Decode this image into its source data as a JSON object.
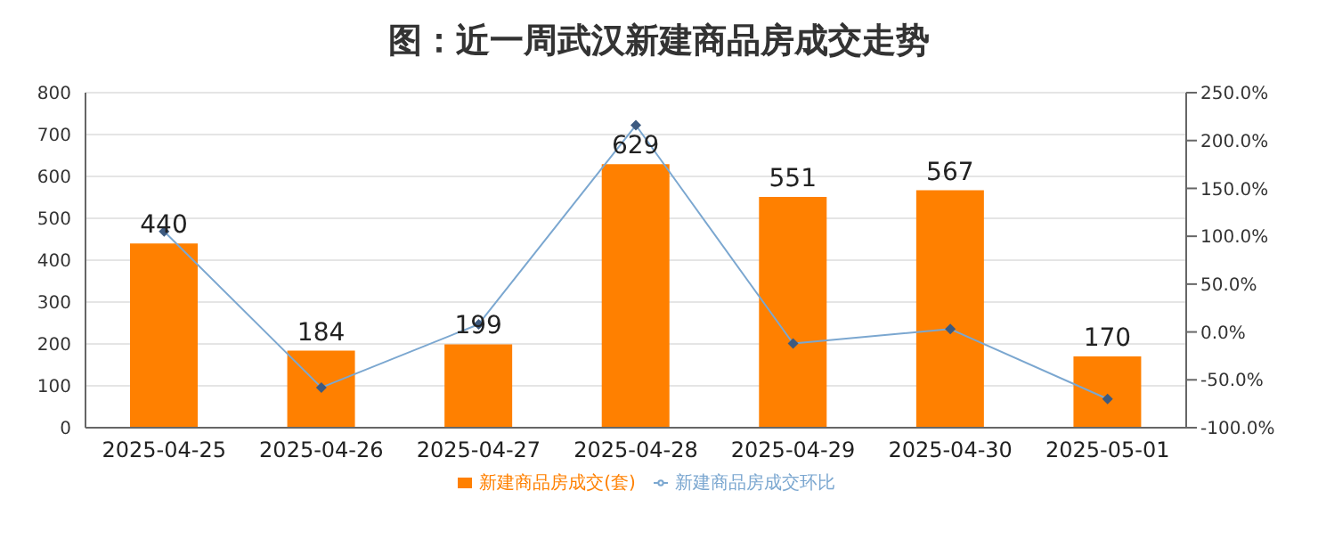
{
  "chart_data": {
    "type": "bar",
    "title": "图：近一周武汉新建商品房成交走势",
    "categories": [
      "2025-04-25",
      "2025-04-26",
      "2025-04-27",
      "2025-04-28",
      "2025-04-29",
      "2025-04-30",
      "2025-05-01"
    ],
    "series": [
      {
        "name": "新建商品房成交(套)",
        "color": "#ff8000",
        "values": [
          440,
          184,
          199,
          629,
          551,
          567,
          170
        ],
        "data_labels": true
      },
      {
        "name": "新建商品房成交环比",
        "type": "line",
        "axis": "y2",
        "color": "#7ba7d0",
        "values": [
          105,
          -58,
          8,
          216,
          -12,
          3,
          -70
        ],
        "marker": "diamond"
      }
    ],
    "ylim": [
      0,
      800
    ],
    "yticks": [
      0,
      100,
      200,
      300,
      400,
      500,
      600,
      700,
      800
    ],
    "y2lim": [
      -100,
      250
    ],
    "y2ticks": [
      {
        "value": -100,
        "label": "-100.0%"
      },
      {
        "value": -50,
        "label": "-50.0%"
      },
      {
        "value": 0,
        "label": "0.0%"
      },
      {
        "value": 50,
        "label": "50.0%"
      },
      {
        "value": 100,
        "label": "100.0%"
      },
      {
        "value": 150,
        "label": "150.0%"
      },
      {
        "value": 200,
        "label": "200.0%"
      },
      {
        "value": 250,
        "label": "250.0%"
      }
    ],
    "grid": "y",
    "legend": "bottom"
  }
}
